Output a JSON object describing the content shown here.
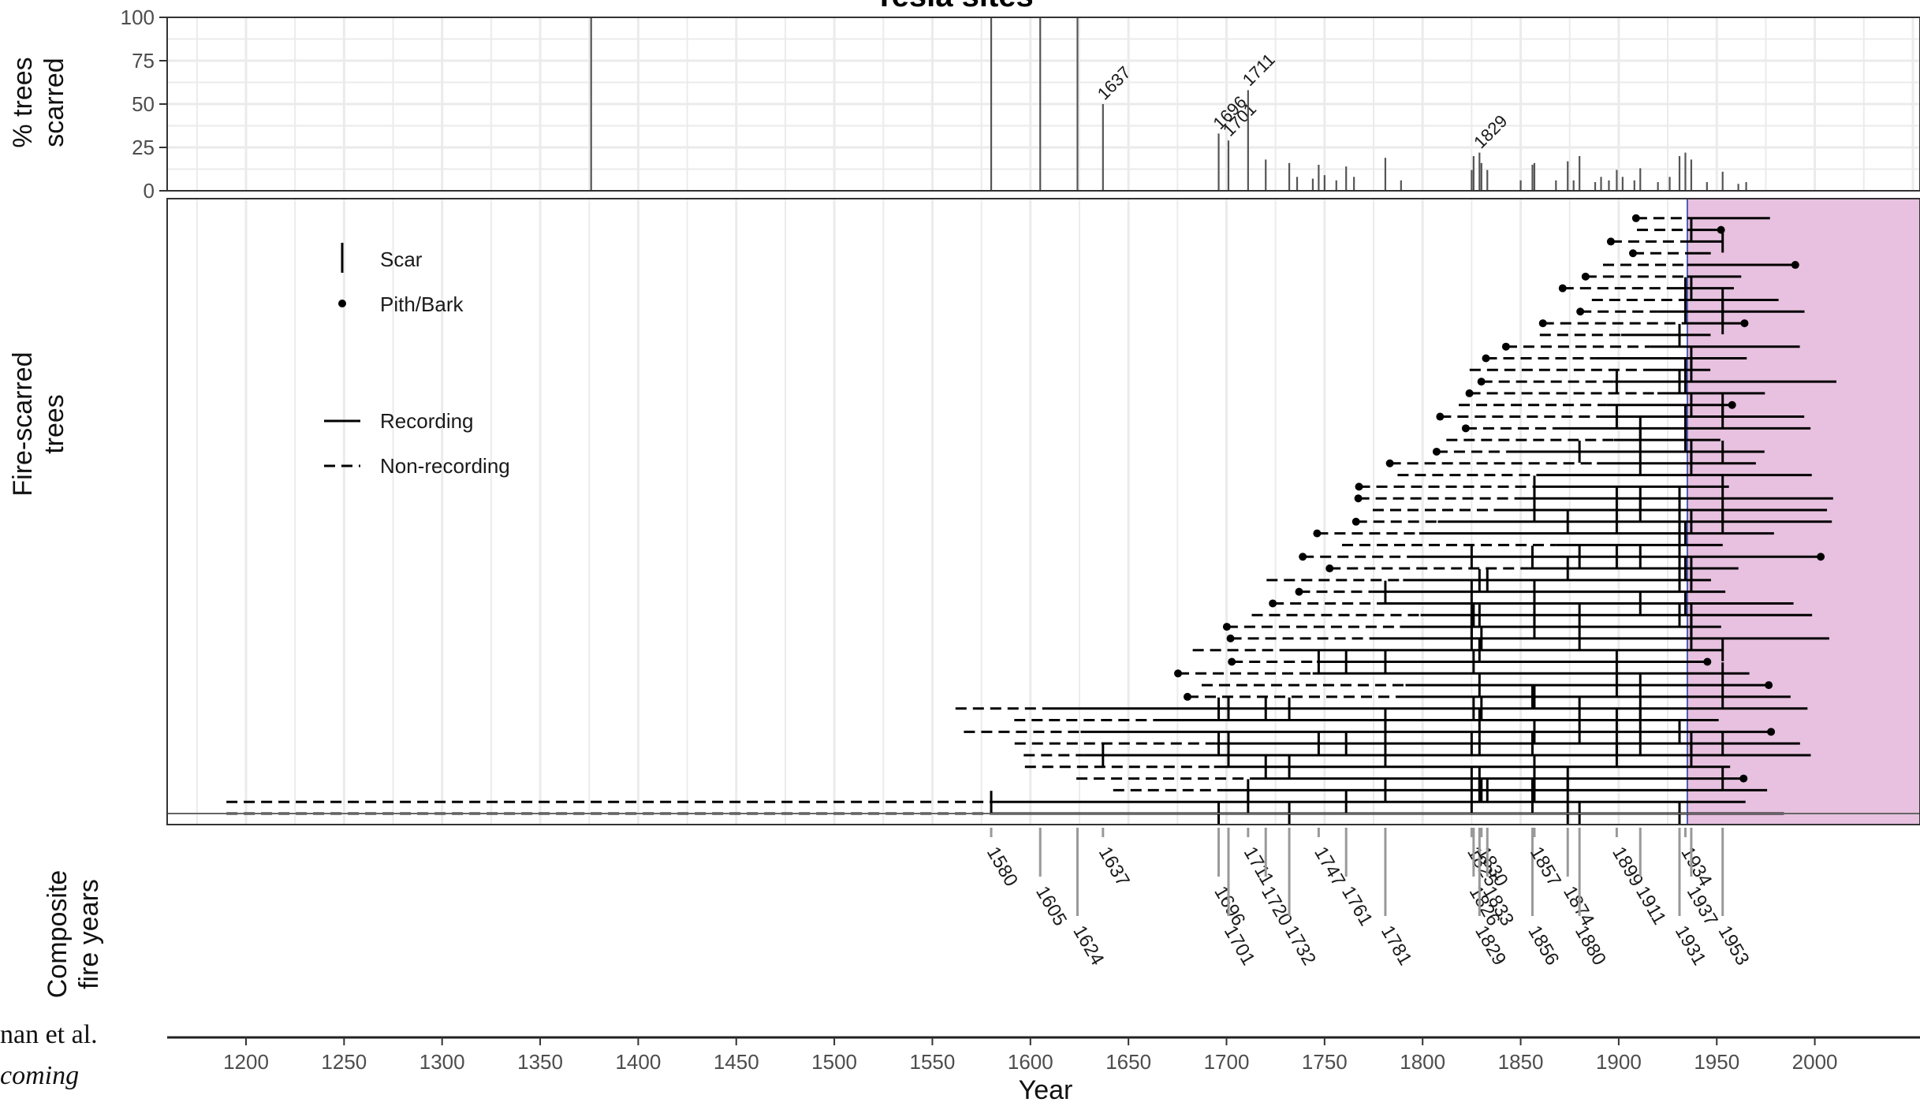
{
  "chart_data": {
    "type": "fire_history",
    "title": "Tesla sites",
    "xlabel": "Year",
    "xlim": [
      1160,
      2060
    ],
    "x_ticks": [
      1200,
      1250,
      1300,
      1350,
      1400,
      1450,
      1500,
      1550,
      1600,
      1650,
      1700,
      1750,
      1800,
      1850,
      1900,
      1950,
      2000
    ],
    "grid": true,
    "top_panel": {
      "ylabel_lines": [
        "% trees",
        "scarred"
      ],
      "ylim": [
        0,
        100
      ],
      "y_ticks": [
        0,
        25,
        50,
        75,
        100
      ],
      "bars": [
        {
          "year": 1376,
          "value": 100
        },
        {
          "year": 1580,
          "value": 100
        },
        {
          "year": 1605,
          "value": 100
        },
        {
          "year": 1624,
          "value": 100
        },
        {
          "year": 1637,
          "value": 50,
          "label": "1637"
        },
        {
          "year": 1696,
          "value": 33,
          "label": "1696"
        },
        {
          "year": 1701,
          "value": 29,
          "label": "1701"
        },
        {
          "year": 1711,
          "value": 58,
          "label": "1711"
        },
        {
          "year": 1720,
          "value": 18
        },
        {
          "year": 1732,
          "value": 16
        },
        {
          "year": 1736,
          "value": 8
        },
        {
          "year": 1744,
          "value": 7
        },
        {
          "year": 1747,
          "value": 15
        },
        {
          "year": 1750,
          "value": 9
        },
        {
          "year": 1756,
          "value": 6
        },
        {
          "year": 1761,
          "value": 14
        },
        {
          "year": 1765,
          "value": 8
        },
        {
          "year": 1781,
          "value": 19
        },
        {
          "year": 1789,
          "value": 6
        },
        {
          "year": 1825,
          "value": 12
        },
        {
          "year": 1826,
          "value": 20
        },
        {
          "year": 1829,
          "value": 22,
          "label": "1829"
        },
        {
          "year": 1830,
          "value": 16
        },
        {
          "year": 1833,
          "value": 12
        },
        {
          "year": 1850,
          "value": 6
        },
        {
          "year": 1856,
          "value": 15
        },
        {
          "year": 1857,
          "value": 16
        },
        {
          "year": 1868,
          "value": 6
        },
        {
          "year": 1874,
          "value": 17
        },
        {
          "year": 1877,
          "value": 6
        },
        {
          "year": 1880,
          "value": 20
        },
        {
          "year": 1888,
          "value": 5
        },
        {
          "year": 1891,
          "value": 8
        },
        {
          "year": 1895,
          "value": 6
        },
        {
          "year": 1899,
          "value": 12
        },
        {
          "year": 1902,
          "value": 8
        },
        {
          "year": 1908,
          "value": 6
        },
        {
          "year": 1911,
          "value": 13
        },
        {
          "year": 1920,
          "value": 5
        },
        {
          "year": 1926,
          "value": 8
        },
        {
          "year": 1931,
          "value": 20
        },
        {
          "year": 1934,
          "value": 22
        },
        {
          "year": 1937,
          "value": 18
        },
        {
          "year": 1945,
          "value": 5
        },
        {
          "year": 1953,
          "value": 11
        },
        {
          "year": 1961,
          "value": 4
        },
        {
          "year": 1965,
          "value": 5
        }
      ]
    },
    "middle_panel": {
      "ylabel_lines": [
        "Fire-scarred",
        "trees"
      ],
      "legend": [
        "Scar",
        "Pith/Bark",
        "Recording",
        "Non-recording"
      ],
      "highlight_span": [
        1935,
        2060
      ],
      "highlight_color": "#e7c1df",
      "highlight_border_color": "#4d5bb5"
    },
    "bottom_panel": {
      "ylabel_lines": [
        "Composite",
        "fire years"
      ],
      "fire_years": [
        1580,
        1605,
        1624,
        1637,
        1696,
        1701,
        1711,
        1720,
        1732,
        1747,
        1761,
        1781,
        1825,
        1826,
        1829,
        1830,
        1833,
        1856,
        1857,
        1874,
        1880,
        1899,
        1911,
        1931,
        1934,
        1937,
        1953
      ]
    },
    "colors": {
      "ink": "#000000",
      "grid": "#ebebeb",
      "axis_text": "#4d4d4d",
      "composite_line": "#999999"
    }
  },
  "credit": {
    "line1": "nan et al.",
    "line2": "coming"
  }
}
